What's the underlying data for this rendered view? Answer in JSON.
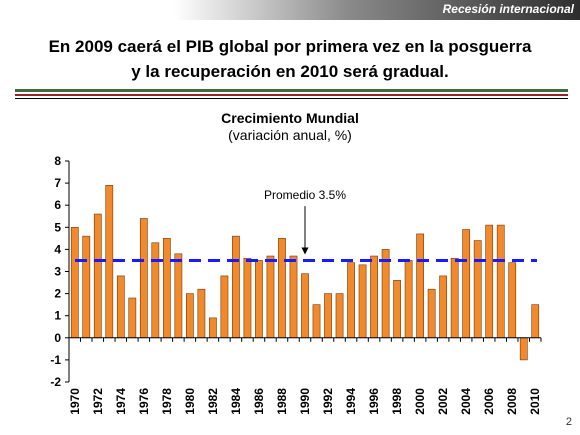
{
  "banner": {
    "label": "Recesión internacional"
  },
  "headline": {
    "line1": "En 2009 caerá el PIB global por primera vez en la posguerra",
    "line2": "y la recuperación en 2010 será gradual."
  },
  "page_number": "2",
  "colors": {
    "bar": "#F28A2B",
    "bar_stroke": "#6b3a10",
    "average_line": "#1a1aff",
    "rule_green": "#3f6b3f",
    "rule_red": "#9b2020"
  },
  "chart_data": {
    "type": "bar",
    "title": "Crecimiento Mundial",
    "subtitle": "(variación anual, %)",
    "xlabel": "",
    "ylabel": "",
    "ylim": [
      -2,
      8
    ],
    "yticks": [
      -2,
      -1,
      0,
      1,
      2,
      3,
      4,
      5,
      6,
      7,
      8
    ],
    "categories": [
      "1970",
      "1971",
      "1972",
      "1973",
      "1974",
      "1975",
      "1976",
      "1977",
      "1978",
      "1979",
      "1980",
      "1981",
      "1982",
      "1983",
      "1984",
      "1985",
      "1986",
      "1987",
      "1988",
      "1989",
      "1990",
      "1991",
      "1992",
      "1993",
      "1994",
      "1995",
      "1996",
      "1997",
      "1998",
      "1999",
      "2000",
      "2001",
      "2002",
      "2003",
      "2004",
      "2005",
      "2006",
      "2007",
      "2008",
      "2009",
      "2010"
    ],
    "x_tick_labels": [
      "1970",
      "1972",
      "1974",
      "1976",
      "1978",
      "1980",
      "1982",
      "1984",
      "1986",
      "1988",
      "1990",
      "1992",
      "1994",
      "1996",
      "1998",
      "2000",
      "2002",
      "2004",
      "2006",
      "2008",
      "2010"
    ],
    "values": [
      5.0,
      4.6,
      5.6,
      6.9,
      2.8,
      1.8,
      5.4,
      4.3,
      4.5,
      3.8,
      2.0,
      2.2,
      0.9,
      2.8,
      4.6,
      3.6,
      3.5,
      3.7,
      4.5,
      3.7,
      2.9,
      1.5,
      2.0,
      2.0,
      3.4,
      3.3,
      3.7,
      4.0,
      2.6,
      3.5,
      4.7,
      2.2,
      2.8,
      3.6,
      4.9,
      4.4,
      5.1,
      5.1,
      3.4,
      -1.0,
      1.5
    ],
    "average": {
      "value": 3.5,
      "label": "Promedio 3.5%",
      "arrow_at": "1990"
    },
    "grid": false,
    "legend": "none"
  }
}
